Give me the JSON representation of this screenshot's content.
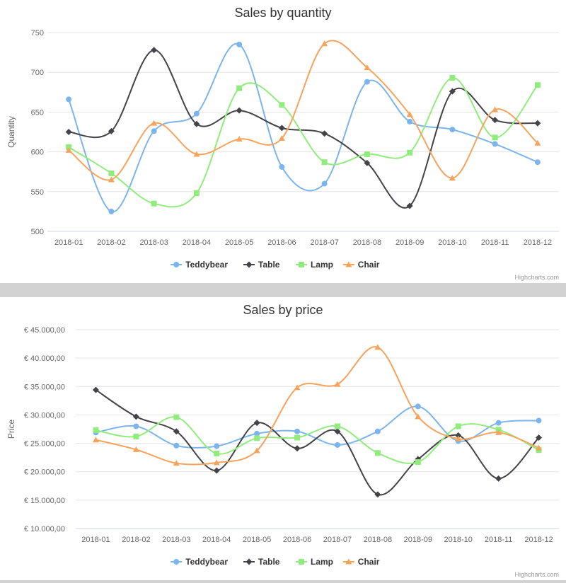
{
  "chart_data": [
    {
      "type": "line",
      "title": "Sales by quantity",
      "ylabel": "Quantity",
      "xlabel": "",
      "ylim": [
        500,
        750
      ],
      "yticks": [
        "500",
        "550",
        "600",
        "650",
        "700",
        "750"
      ],
      "ytick_values": [
        500,
        550,
        600,
        650,
        700,
        750
      ],
      "grid": true,
      "legend_position": "bottom-center",
      "categories": [
        "2018-01",
        "2018-02",
        "2018-03",
        "2018-04",
        "2018-05",
        "2018-06",
        "2018-07",
        "2018-08",
        "2018-09",
        "2018-10",
        "2018-11",
        "2018-12"
      ],
      "series": [
        {
          "name": "Teddybear",
          "color": "#7cb5ec",
          "marker": "circle",
          "values": [
            666,
            525,
            626,
            648,
            735,
            581,
            560,
            688,
            638,
            628,
            610,
            587
          ]
        },
        {
          "name": "Table",
          "color": "#434348",
          "marker": "diamond",
          "values": [
            625,
            626,
            728,
            635,
            652,
            630,
            623,
            586,
            532,
            676,
            640,
            636
          ]
        },
        {
          "name": "Lamp",
          "color": "#90ed7d",
          "marker": "square",
          "values": [
            606,
            573,
            535,
            548,
            680,
            659,
            587,
            597,
            599,
            693,
            618,
            684
          ]
        },
        {
          "name": "Chair",
          "color": "#f7a35c",
          "marker": "triangle",
          "values": [
            602,
            565,
            636,
            597,
            616,
            617,
            736,
            706,
            647,
            567,
            653,
            611
          ]
        }
      ],
      "credits": "Highcharts.com"
    },
    {
      "type": "line",
      "title": "Sales by price",
      "ylabel": "Price",
      "xlabel": "",
      "ylim": [
        10000,
        45000
      ],
      "yticks": [
        "€ 10.000,00",
        "€ 15.000,00",
        "€ 20.000,00",
        "€ 25.000,00",
        "€ 30.000,00",
        "€ 35.000,00",
        "€ 40.000,00",
        "€ 45.000,00"
      ],
      "ytick_values": [
        10000,
        15000,
        20000,
        25000,
        30000,
        35000,
        40000,
        45000
      ],
      "grid": true,
      "legend_position": "bottom-center",
      "categories": [
        "2018-01",
        "2018-02",
        "2018-03",
        "2018-04",
        "2018-05",
        "2018-06",
        "2018-07",
        "2018-08",
        "2018-09",
        "2018-10",
        "2018-11",
        "2018-12"
      ],
      "series": [
        {
          "name": "Teddybear",
          "color": "#7cb5ec",
          "marker": "circle",
          "values": [
            26900,
            28000,
            24600,
            24500,
            26700,
            27100,
            24700,
            27100,
            31500,
            25400,
            28600,
            29000
          ]
        },
        {
          "name": "Table",
          "color": "#434348",
          "marker": "diamond",
          "values": [
            34400,
            29700,
            27100,
            20200,
            28600,
            24100,
            27100,
            16000,
            22200,
            26400,
            18800,
            26000
          ]
        },
        {
          "name": "Lamp",
          "color": "#90ed7d",
          "marker": "square",
          "values": [
            27300,
            26200,
            29600,
            23200,
            25900,
            26000,
            28000,
            23300,
            21700,
            28000,
            27400,
            23800
          ]
        },
        {
          "name": "Chair",
          "color": "#f7a35c",
          "marker": "triangle",
          "values": [
            25600,
            23900,
            21500,
            21600,
            23700,
            34800,
            35400,
            41900,
            29700,
            25800,
            26900,
            24200
          ]
        }
      ],
      "credits": "Highcharts.com"
    }
  ]
}
